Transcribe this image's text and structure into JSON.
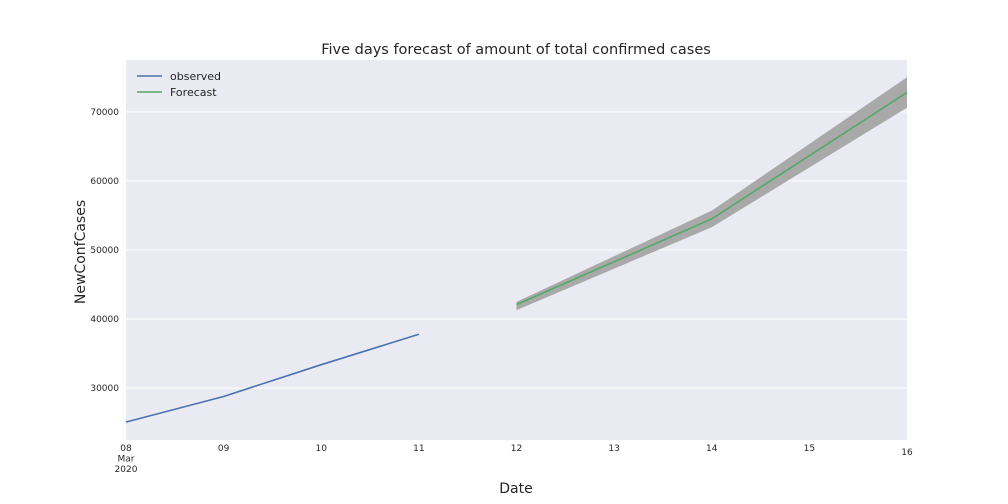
{
  "chart_data": {
    "type": "line",
    "title": "Five days forecast of amount of total confirmed cases",
    "xlabel": "Date",
    "ylabel": "NewConfCases",
    "x_range": [
      "2020-03-08",
      "2020-03-16"
    ],
    "ylim": [
      22500,
      77500
    ],
    "yticks": [
      30000,
      40000,
      50000,
      60000,
      70000
    ],
    "ytick_labels": [
      "30000",
      "40000",
      "50000",
      "60000",
      "70000"
    ],
    "xticks": [
      {
        "date": "2020-03-08",
        "lines": [
          "08",
          "Mar",
          "2020"
        ]
      },
      {
        "date": "2020-03-09",
        "lines": [
          "09"
        ]
      },
      {
        "date": "2020-03-10",
        "lines": [
          "10"
        ]
      },
      {
        "date": "2020-03-11",
        "lines": [
          "11"
        ]
      },
      {
        "date": "2020-03-12",
        "lines": [
          "12"
        ]
      },
      {
        "date": "2020-03-13",
        "lines": [
          "13"
        ]
      },
      {
        "date": "2020-03-14",
        "lines": [
          "14"
        ]
      },
      {
        "date": "2020-03-15",
        "lines": [
          "15"
        ]
      },
      {
        "date": "2020-03-16",
        "lines": [
          "16"
        ]
      }
    ],
    "grid": true,
    "legend_position": "top-left",
    "background": "#eaeaf2",
    "series": [
      {
        "name": "observed",
        "color": "#4c72b0",
        "x": [
          "2020-03-08",
          "2020-03-09",
          "2020-03-10",
          "2020-03-11"
        ],
        "y": [
          25100,
          28800,
          33400,
          37800
        ]
      },
      {
        "name": "Forecast",
        "color": "#55a868",
        "x": [
          "2020-03-12",
          "2020-03-14",
          "2020-03-16"
        ],
        "y": [
          42100,
          54500,
          72800
        ],
        "ci_lower": [
          41300,
          53300,
          70600
        ],
        "ci_upper": [
          42500,
          55700,
          75000
        ],
        "ci_color": "#a9a9aa"
      }
    ]
  }
}
